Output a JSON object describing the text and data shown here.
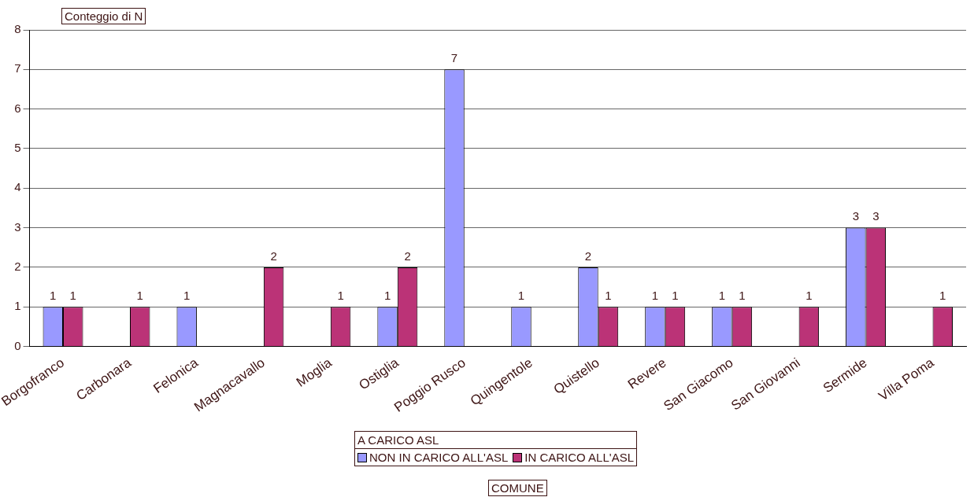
{
  "chart_data": {
    "type": "bar",
    "title": "Conteggio di N",
    "annotations": [
      "COMUNE"
    ],
    "legend_title": "A CARICO ASL",
    "categories": [
      "Borgofranco",
      "Carbonara",
      "Felonica",
      "Magnacavallo",
      "Moglia",
      "Ostiglia",
      "Poggio Rusco",
      "Quingentole",
      "Quistello",
      "Revere",
      "San Giacomo",
      "San Giovanni",
      "Sermide",
      "Villa Poma"
    ],
    "series": [
      {
        "name": "NON IN CARICO ALL'ASL",
        "color": "#9999ff",
        "values": [
          1,
          null,
          1,
          null,
          null,
          1,
          7,
          1,
          2,
          1,
          1,
          null,
          3,
          null
        ]
      },
      {
        "name": "IN CARICO ALL'ASL",
        "color": "#bb3377",
        "values": [
          1,
          1,
          null,
          2,
          1,
          2,
          null,
          null,
          1,
          1,
          1,
          1,
          3,
          1
        ]
      }
    ],
    "ylim": [
      0,
      8
    ],
    "yticks": [
      0,
      1,
      2,
      3,
      4,
      5,
      6,
      7,
      8
    ],
    "grid": "y",
    "legend": "bottom",
    "data_labels": true
  }
}
